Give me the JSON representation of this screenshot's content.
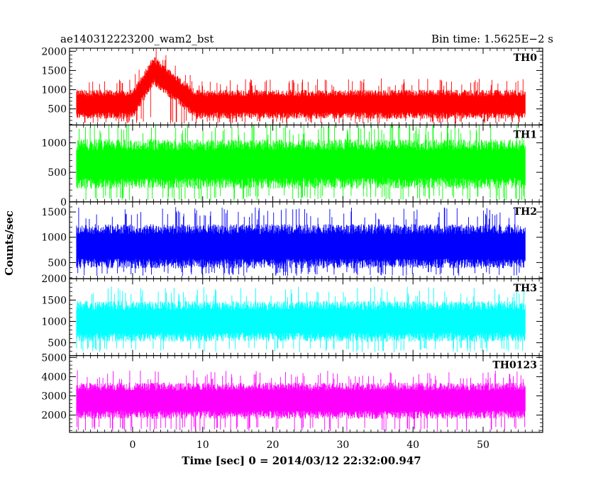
{
  "header": {
    "title": "ae140312223200_wam2_bst",
    "bin_time": "Bin time: 1.5625E−2 s"
  },
  "chart_data": {
    "type": "line",
    "xlabel": "Time [sec] 0 = 2014/03/12 22:32:00.947",
    "ylabel": "Counts/sec",
    "xlim": [
      -9,
      58.5
    ],
    "x_range_of_data": [
      -8,
      56
    ],
    "x_ticks": [
      0,
      10,
      20,
      30,
      40,
      50
    ],
    "panels": [
      {
        "name": "TH0",
        "color": "#ff0000",
        "ylim": [
          80,
          2080
        ],
        "y_ticks": [
          500,
          1000,
          1500,
          2000
        ],
        "baseline": 620,
        "noise_amplitude": 380,
        "spikes": 1.5,
        "floor": 120,
        "burst": {
          "t_start": 0,
          "t_peak": 3,
          "t_end": 9,
          "peak_level": 1500
        }
      },
      {
        "name": "TH1",
        "color": "#00ff00",
        "ylim": [
          0,
          1300
        ],
        "y_ticks": [
          0,
          500,
          1000
        ],
        "baseline": 640,
        "noise_amplitude": 420,
        "spikes": 1.45,
        "floor": 15
      },
      {
        "name": "TH2",
        "color": "#0000ff",
        "ylim": [
          180,
          1700
        ],
        "y_ticks": [
          500,
          1000,
          1500
        ],
        "baseline": 820,
        "noise_amplitude": 440,
        "spikes": 1.5,
        "floor": 230
      },
      {
        "name": "TH3",
        "color": "#00ffff",
        "ylim": [
          200,
          2000
        ],
        "y_ticks": [
          500,
          1000,
          1500,
          2000
        ],
        "baseline": 1000,
        "noise_amplitude": 480,
        "spikes": 1.45,
        "floor": 280
      },
      {
        "name": "TH0123",
        "color": "#ff00ff",
        "ylim": [
          1100,
          5100
        ],
        "y_ticks": [
          2000,
          3000,
          4000,
          5000
        ],
        "baseline": 2750,
        "noise_amplitude": 950,
        "spikes": 1.4,
        "floor": 1150
      }
    ]
  }
}
